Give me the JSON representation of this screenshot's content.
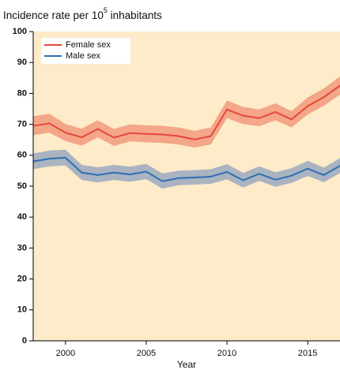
{
  "chart_data": {
    "type": "line",
    "title": [
      "Incidence rate per 10",
      "5",
      " inhabitants"
    ],
    "x_label": "Year",
    "x": [
      1998,
      1999,
      2000,
      2001,
      2002,
      2003,
      2004,
      2005,
      2006,
      2007,
      2008,
      2009,
      2010,
      2011,
      2012,
      2013,
      2014,
      2015,
      2016,
      2017
    ],
    "xlim": [
      1998,
      2017
    ],
    "xticks": [
      2000,
      2005,
      2010,
      2015
    ],
    "ylim": [
      0,
      100
    ],
    "yticks": [
      0,
      10,
      20,
      30,
      40,
      50,
      60,
      70,
      80,
      90,
      100
    ],
    "background": "#fdebc9",
    "legend": "upper left",
    "series": [
      {
        "name": "Female sex",
        "color": "#e4483b",
        "band_color": "#f4a688",
        "values": [
          69.5,
          70.3,
          67.3,
          65.8,
          68.5,
          65.7,
          67.2,
          66.9,
          66.7,
          66.2,
          65.1,
          66.2,
          74.8,
          72.8,
          72.0,
          74.0,
          71.6,
          75.9,
          78.8,
          82.5
        ],
        "lower": [
          66.5,
          67.3,
          64.6,
          63.1,
          65.8,
          63.0,
          64.5,
          64.2,
          64.0,
          63.5,
          62.5,
          63.5,
          72.0,
          70.1,
          69.4,
          71.3,
          69.0,
          73.2,
          76.0,
          79.6
        ],
        "upper": [
          72.6,
          73.4,
          70.1,
          68.6,
          71.3,
          68.5,
          70.0,
          69.7,
          69.5,
          69.0,
          67.9,
          69.0,
          77.7,
          75.6,
          74.8,
          76.8,
          74.3,
          78.7,
          81.6,
          85.5
        ]
      },
      {
        "name": "Male sex",
        "color": "#2b70b3",
        "band_color": "#aab3c0",
        "values": [
          58.0,
          58.9,
          59.2,
          54.4,
          53.6,
          54.4,
          53.8,
          54.7,
          51.6,
          52.6,
          52.8,
          53.1,
          54.6,
          51.9,
          54.0,
          52.1,
          53.4,
          55.7,
          53.6,
          56.6
        ],
        "lower": [
          55.5,
          56.4,
          56.7,
          52.0,
          51.2,
          52.0,
          51.4,
          52.3,
          49.2,
          50.3,
          50.5,
          50.8,
          52.2,
          49.6,
          51.7,
          49.8,
          51.1,
          53.3,
          51.3,
          54.2
        ],
        "upper": [
          60.6,
          61.5,
          61.8,
          56.9,
          56.1,
          56.9,
          56.3,
          57.2,
          54.1,
          55.0,
          55.2,
          55.5,
          57.1,
          54.3,
          56.4,
          54.5,
          55.8,
          58.2,
          56.0,
          59.1
        ]
      }
    ]
  }
}
